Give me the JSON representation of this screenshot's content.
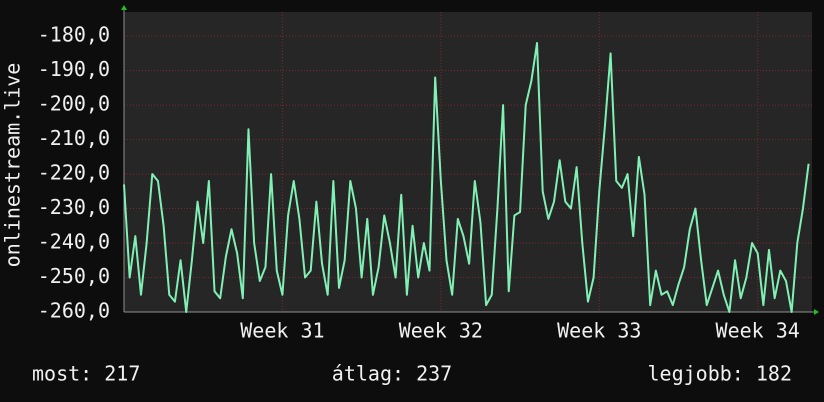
{
  "chart_data": {
    "type": "line",
    "y_label": "onlinestream.live",
    "footer": [
      "most: 217",
      "átlag: 237",
      "legjobb: 182"
    ],
    "x": [
      0,
      1,
      2,
      3,
      4,
      5,
      6,
      7,
      8,
      9,
      10,
      11,
      12,
      13,
      14,
      15,
      16,
      17,
      18,
      19,
      20,
      21,
      22,
      23,
      24,
      25,
      26,
      27,
      28,
      29,
      30,
      31,
      32,
      33,
      34,
      35,
      36,
      37,
      38,
      39,
      40,
      41,
      42,
      43,
      44,
      45,
      46,
      47,
      48,
      49,
      50,
      51,
      52,
      53,
      54,
      55,
      56,
      57,
      58,
      59,
      60,
      61,
      62,
      63,
      64,
      65,
      66,
      67,
      68,
      69,
      70,
      71,
      72,
      73,
      74,
      75,
      76,
      77,
      78,
      79,
      80,
      81,
      82,
      83,
      84,
      85,
      86,
      87,
      88,
      89,
      90,
      91,
      92,
      93,
      94,
      95,
      96,
      97,
      98,
      99,
      100,
      101,
      102,
      103,
      104,
      105,
      106,
      107,
      108,
      109,
      110,
      111,
      112,
      113,
      114,
      115,
      116,
      117,
      118,
      119,
      120,
      121
    ],
    "series": [
      {
        "color": "#80f0b4",
        "values": [
          -223,
          -250,
          -238,
          -255,
          -240,
          -220,
          -222,
          -235,
          -255,
          -257,
          -245,
          -260,
          -245,
          -228,
          -240,
          -222,
          -254,
          -256,
          -244,
          -236,
          -243,
          -256,
          -207,
          -240,
          -251,
          -247,
          -220,
          -248,
          -255,
          -232,
          -222,
          -233,
          -250,
          -248,
          -228,
          -246,
          -255,
          -222,
          -253,
          -245,
          -222,
          -230,
          -250,
          -233,
          -255,
          -247,
          -232,
          -240,
          -250,
          -226,
          -255,
          -235,
          -250,
          -240,
          -248,
          -192,
          -222,
          -245,
          -255,
          -233,
          -238,
          -246,
          -222,
          -234,
          -258,
          -255,
          -230,
          -200,
          -254,
          -232,
          -231,
          -200,
          -193,
          -182,
          -225,
          -233,
          -228,
          -216,
          -228,
          -230,
          -218,
          -240,
          -257,
          -250,
          -225,
          -206,
          -185,
          -222,
          -224,
          -220,
          -238,
          -215,
          -226,
          -258,
          -248,
          -255,
          -254,
          -258,
          -252,
          -247,
          -236,
          -230,
          -245,
          -258,
          -253,
          -248,
          -255,
          -260,
          -245,
          -256,
          -250,
          -240,
          -243,
          -258,
          -242,
          -256,
          -248,
          -251,
          -260,
          -240,
          -230,
          -217
        ]
      }
    ],
    "xlim": [
      0,
      121.6
    ],
    "xticks": [
      {
        "value": 28,
        "label": "Week 31"
      },
      {
        "value": 56,
        "label": "Week 32"
      },
      {
        "value": 84,
        "label": "Week 33"
      },
      {
        "value": 112,
        "label": "Week 34"
      }
    ],
    "ylim": [
      -260,
      -173
    ],
    "yticks": [
      {
        "value": -260,
        "label": "-260,0"
      },
      {
        "value": -250,
        "label": "-250,0"
      },
      {
        "value": -240,
        "label": "-240,0"
      },
      {
        "value": -230,
        "label": "-230,0"
      },
      {
        "value": -220,
        "label": "-220,0"
      },
      {
        "value": -210,
        "label": "-210,0"
      },
      {
        "value": -200,
        "label": "-200,0"
      },
      {
        "value": -190,
        "label": "-190,0"
      },
      {
        "value": -180,
        "label": "-180,0"
      }
    ],
    "grid": true
  }
}
